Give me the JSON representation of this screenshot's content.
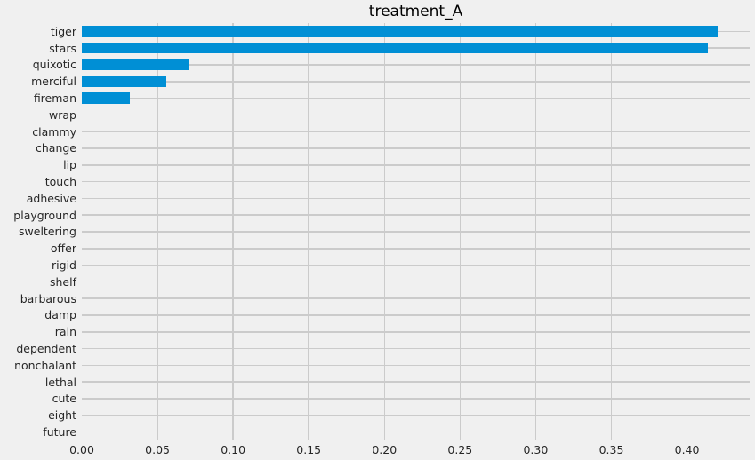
{
  "style": {
    "background_color": "#f0f0f0",
    "grid_color": "#cbcbcb",
    "bar_color": "#008fd5",
    "text_color": "#262626",
    "title_color": "#000000"
  },
  "chart_data": {
    "type": "bar",
    "orientation": "horizontal",
    "title": "treatment_A",
    "xlabel": "",
    "ylabel": "",
    "categories": [
      "tiger",
      "stars",
      "quixotic",
      "merciful",
      "fireman",
      "wrap",
      "clammy",
      "change",
      "lip",
      "touch",
      "adhesive",
      "playground",
      "sweltering",
      "offer",
      "rigid",
      "shelf",
      "barbarous",
      "damp",
      "rain",
      "dependent",
      "nonchalant",
      "lethal",
      "cute",
      "eight",
      "future"
    ],
    "values": [
      0.42,
      0.414,
      0.071,
      0.056,
      0.032,
      0,
      0,
      0,
      0,
      0,
      0,
      0,
      0,
      0,
      0,
      0,
      0,
      0,
      0,
      0,
      0,
      0,
      0,
      0,
      0
    ],
    "xlim": [
      0,
      0.4414
    ],
    "x_ticks": [
      0.0,
      0.05,
      0.1,
      0.15,
      0.2,
      0.25,
      0.3,
      0.35,
      0.4
    ],
    "x_tick_labels": [
      "0.00",
      "0.05",
      "0.10",
      "0.15",
      "0.20",
      "0.25",
      "0.30",
      "0.35",
      "0.40"
    ],
    "grid": true,
    "legend": false
  }
}
